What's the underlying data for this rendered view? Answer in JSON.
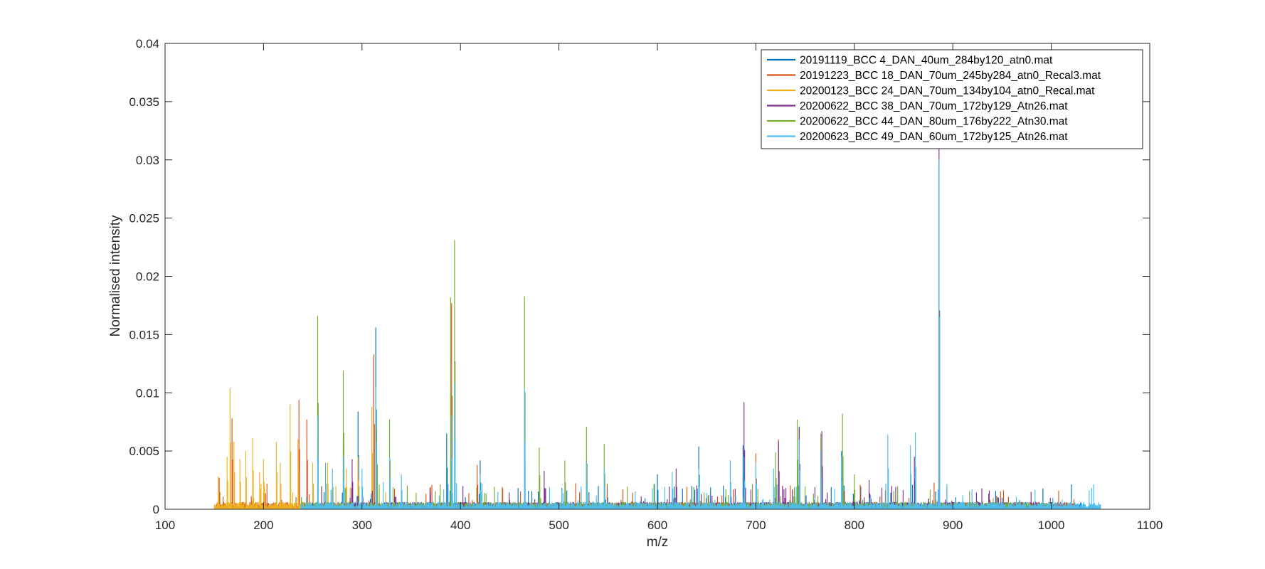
{
  "chart_data": {
    "type": "line",
    "title": "",
    "xlabel": "m/z",
    "ylabel": "Normalised intensity",
    "xlim": [
      100,
      1100
    ],
    "ylim": [
      0,
      0.04
    ],
    "xticks": [
      100,
      200,
      300,
      400,
      500,
      600,
      700,
      800,
      900,
      1000,
      1100
    ],
    "yticks": [
      0,
      0.005,
      0.01,
      0.015,
      0.02,
      0.025,
      0.03,
      0.035,
      0.04
    ],
    "grid": false,
    "legend_position": "top-right",
    "baseline_intensity": 0.0004,
    "series": [
      {
        "name": "20191119_BCC 4_DAN_40um_284by120_atn0.mat",
        "color": "#0072BD",
        "range": [
          238,
          1030
        ],
        "peaks": [
          [
            255,
            0.0062
          ],
          [
            281,
            0.0055
          ],
          [
            296,
            0.0084
          ],
          [
            314,
            0.0156
          ],
          [
            386,
            0.0065
          ],
          [
            420,
            0.0042
          ],
          [
            465,
            0.008
          ],
          [
            528,
            0.0042
          ],
          [
            600,
            0.003
          ],
          [
            642,
            0.0054
          ],
          [
            687,
            0.0055
          ],
          [
            744,
            0.0071
          ],
          [
            787,
            0.005
          ],
          [
            886,
            0.03
          ]
        ]
      },
      {
        "name": "20191223_BCC 18_DAN_70um_245by284_atn0_Recal3.mat",
        "color": "#D95319",
        "range": [
          152,
          1025
        ],
        "peaks": [
          [
            155,
            0.0027
          ],
          [
            168,
            0.0078
          ],
          [
            236,
            0.0094
          ],
          [
            244,
            0.0077
          ],
          [
            312,
            0.0133
          ],
          [
            391,
            0.0177
          ],
          [
            417,
            0.0038
          ],
          [
            465,
            0.0065
          ],
          [
            700,
            0.0048
          ],
          [
            723,
            0.006
          ],
          [
            925,
            0.0007
          ],
          [
            1022,
            0.0005
          ]
        ]
      },
      {
        "name": "20200123_BCC 24_DAN_70um_134by104_atn0_Recal.mat",
        "color": "#EDB120",
        "range": [
          150,
          330
        ],
        "peaks": [
          [
            154,
            0.0028
          ],
          [
            163,
            0.0045
          ],
          [
            166,
            0.0104
          ],
          [
            170,
            0.0058
          ],
          [
            176,
            0.0043
          ],
          [
            182,
            0.005
          ],
          [
            189,
            0.0061
          ],
          [
            196,
            0.0032
          ],
          [
            200,
            0.0043
          ],
          [
            213,
            0.0058
          ],
          [
            217,
            0.004
          ],
          [
            227,
            0.009
          ],
          [
            235,
            0.006
          ],
          [
            250,
            0.004
          ],
          [
            265,
            0.004
          ],
          [
            284,
            0.0035
          ],
          [
            296,
            0.0045
          ],
          [
            310,
            0.0088
          ]
        ]
      },
      {
        "name": "20200622_BCC 38_DAN_70um_172by129_Atn26.mat",
        "color": "#7E2F8E",
        "range": [
          250,
          1000
        ],
        "peaks": [
          [
            290,
            0.0043
          ],
          [
            485,
            0.0033
          ],
          [
            619,
            0.0035
          ],
          [
            688,
            0.0092
          ],
          [
            723,
            0.0058
          ],
          [
            744,
            0.007
          ],
          [
            767,
            0.0067
          ],
          [
            815,
            0.0025
          ],
          [
            861,
            0.0045
          ],
          [
            886,
            0.031
          ]
        ]
      },
      {
        "name": "20200622_BCC 44_DAN_80um_176by222_Atn30.mat",
        "color": "#77AC30",
        "range": [
          238,
          1000
        ],
        "peaks": [
          [
            255,
            0.0166
          ],
          [
            281,
            0.0119
          ],
          [
            315,
            0.007
          ],
          [
            328,
            0.0077
          ],
          [
            390,
            0.0182
          ],
          [
            394,
            0.0231
          ],
          [
            465,
            0.0183
          ],
          [
            480,
            0.0053
          ],
          [
            506,
            0.0042
          ],
          [
            528,
            0.0071
          ],
          [
            546,
            0.0056
          ],
          [
            720,
            0.0049
          ],
          [
            742,
            0.0077
          ],
          [
            766,
            0.0065
          ],
          [
            788,
            0.0082
          ],
          [
            800,
            0.003
          ]
        ]
      },
      {
        "name": "20200623_BCC 49_DAN_60um_172by125_Atn26.mat",
        "color": "#4DBEEE",
        "range": [
          238,
          1050
        ],
        "peaks": [
          [
            255,
            0.008
          ],
          [
            263,
            0.004
          ],
          [
            270,
            0.0035
          ],
          [
            281,
            0.0045
          ],
          [
            300,
            0.0035
          ],
          [
            314,
            0.0105
          ],
          [
            328,
            0.0045
          ],
          [
            340,
            0.003
          ],
          [
            391,
            0.008
          ],
          [
            394,
            0.0108
          ],
          [
            420,
            0.003
          ],
          [
            465,
            0.0104
          ],
          [
            528,
            0.004
          ],
          [
            546,
            0.0035
          ],
          [
            615,
            0.0032
          ],
          [
            642,
            0.0035
          ],
          [
            674,
            0.0042
          ],
          [
            688,
            0.0045
          ],
          [
            700,
            0.004
          ],
          [
            718,
            0.0035
          ],
          [
            744,
            0.006
          ],
          [
            766,
            0.005
          ],
          [
            787,
            0.0045
          ],
          [
            834,
            0.0064
          ],
          [
            857,
            0.0055
          ],
          [
            862,
            0.0066
          ],
          [
            886,
            0.03
          ],
          [
            910,
            0.0012
          ]
        ]
      }
    ]
  }
}
